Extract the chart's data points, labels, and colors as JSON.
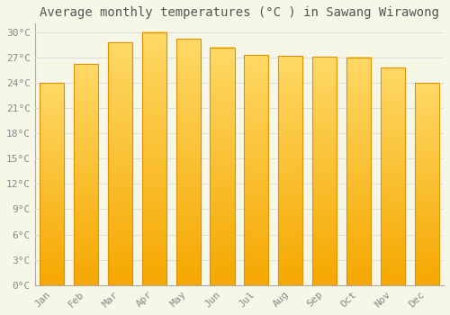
{
  "title": "Average monthly temperatures (°C ) in Sawang Wirawong",
  "months": [
    "Jan",
    "Feb",
    "Mar",
    "Apr",
    "May",
    "Jun",
    "Jul",
    "Aug",
    "Sep",
    "Oct",
    "Nov",
    "Dec"
  ],
  "values": [
    24.0,
    26.2,
    28.8,
    30.0,
    29.2,
    28.2,
    27.3,
    27.2,
    27.1,
    27.0,
    25.8,
    24.0
  ],
  "bar_color_dark": "#F5A800",
  "bar_color_light": "#FFD966",
  "ylim": [
    0,
    31
  ],
  "yticks": [
    0,
    3,
    6,
    9,
    12,
    15,
    18,
    21,
    24,
    27,
    30
  ],
  "ytick_labels": [
    "0°C",
    "3°C",
    "6°C",
    "9°C",
    "12°C",
    "15°C",
    "18°C",
    "21°C",
    "24°C",
    "27°C",
    "30°C"
  ],
  "background_color": "#f7f7e8",
  "grid_color": "#dddddd",
  "title_fontsize": 10,
  "tick_fontsize": 8,
  "font_family": "monospace",
  "bar_width": 0.72
}
